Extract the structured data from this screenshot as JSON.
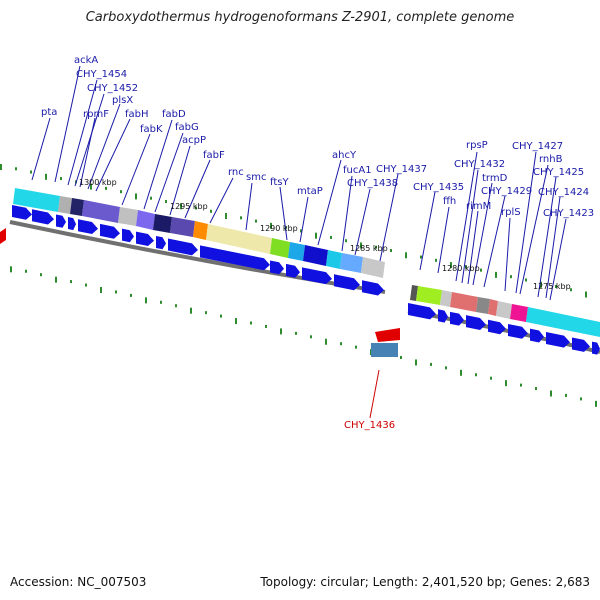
{
  "header": {
    "title": "Carboxydothermus hydrogenoformans Z-2901, complete genome"
  },
  "footer": {
    "accession": "Accession: NC_007503",
    "topology": "Topology: circular; Length: 2,401,520 bp; Genes: 2,683"
  },
  "scale_labels": [
    "1300 kbp",
    "1295 kbp",
    "1290 kbp",
    "1285 kbp",
    "1280 kbp",
    "1275 kbp"
  ],
  "gene_labels_forward": [
    "pta",
    "ackA",
    "CHY_1454",
    "CHY_1452",
    "rpmF",
    "plsX",
    "fabH",
    "fabK",
    "fabD",
    "fabG",
    "acpP",
    "fabF",
    "rnc",
    "smc",
    "ftsY",
    "mtaP",
    "ahcY",
    "fucA1",
    "CHY_1437",
    "CHY_1438",
    "CHY_1435",
    "ffh",
    "rpsP",
    "CHY_1432",
    "rimM",
    "trmD",
    "CHY_1429",
    "rplS",
    "CHY_1427",
    "rnhB",
    "CHY_1425",
    "CHY_1424",
    "CHY_1423"
  ],
  "gene_labels_reverse": [
    "CHY_1436"
  ],
  "colors": {
    "forward_gene": "#1010e0",
    "reverse_gene": "#e00000",
    "label_forward": "#1a1aa8",
    "label_reverse": "#cc0000",
    "backbone": "#808080",
    "tick": "#2e8b2e"
  }
}
